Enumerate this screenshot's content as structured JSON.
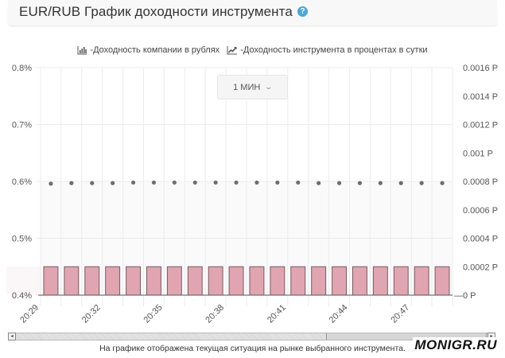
{
  "header": {
    "title": "EUR/RUB График доходности инструмента",
    "help_icon": "question-circle-icon",
    "help_glyph": "?"
  },
  "legend": {
    "items": [
      {
        "icon": "bar-chart-icon",
        "label": "-Доходность компании в рублях"
      },
      {
        "icon": "line-chart-icon",
        "label": "-Доходность инструмента в процентах в сутки"
      }
    ]
  },
  "period_selector": {
    "label": "1 МИН",
    "chevron": "⌄"
  },
  "footer": {
    "note": "На графике отображена текущая ситуация на рынке выбранного инструмента.",
    "watermark": "MONIGR.RU"
  },
  "scrollbar": {
    "left_arrow": "◂",
    "right_arrow": "▸"
  },
  "colors": {
    "bar_fill": "#e0a5b1",
    "bar_stroke": "#7a5a60",
    "dot": "#6e6e6e",
    "grid": "#ececec",
    "help": "#4ba8d6"
  },
  "chart_data": {
    "type": "bar",
    "title": "EUR/RUB График доходности инструмента",
    "xlabel": "",
    "ylabel_left": "Доходность инструмента в процентах в сутки",
    "ylabel_right": "Доходность компании в рублях",
    "x": [
      "20:29",
      "20:30",
      "20:31",
      "20:32",
      "20:33",
      "20:34",
      "20:35",
      "20:36",
      "20:37",
      "20:38",
      "20:39",
      "20:40",
      "20:41",
      "20:42",
      "20:43",
      "20:44",
      "20:45",
      "20:46",
      "20:47",
      "20:48"
    ],
    "x_tick_labels": [
      "20:29",
      "20:32",
      "20:35",
      "20:38",
      "20:41",
      "20:44",
      "20:47"
    ],
    "left_axis": {
      "ticks": [
        "0.8%",
        "0.7%",
        "0.6%",
        "0.5%",
        "0.4%"
      ],
      "range": [
        0.4,
        0.8
      ]
    },
    "right_axis": {
      "ticks": [
        "0.0016 Р",
        "0.0014 Р",
        "0.0012 Р",
        "0.001 Р",
        "0.0008 Р",
        "0.0006 Р",
        "0.0004 Р",
        "0.0002 Р",
        "0 Р"
      ],
      "range": [
        0,
        0.0016
      ]
    },
    "series": [
      {
        "name": "-Доходность компании в рублях",
        "type": "bar",
        "axis": "right",
        "values": [
          0.0002,
          0.0002,
          0.0002,
          0.0002,
          0.0002,
          0.0002,
          0.0002,
          0.0002,
          0.0002,
          0.0002,
          0.0002,
          0.0002,
          0.0002,
          0.0002,
          0.0002,
          0.0002,
          0.0002,
          0.0002,
          0.0002,
          0.0002
        ]
      },
      {
        "name": "-Доходность инструмента в процентах в сутки",
        "type": "scatter",
        "axis": "left",
        "values": [
          0.596,
          0.597,
          0.597,
          0.597,
          0.598,
          0.598,
          0.598,
          0.598,
          0.598,
          0.598,
          0.598,
          0.598,
          0.598,
          0.597,
          0.597,
          0.597,
          0.597,
          0.597,
          0.597,
          0.597
        ]
      }
    ],
    "grid": true,
    "legend_position": "top"
  }
}
